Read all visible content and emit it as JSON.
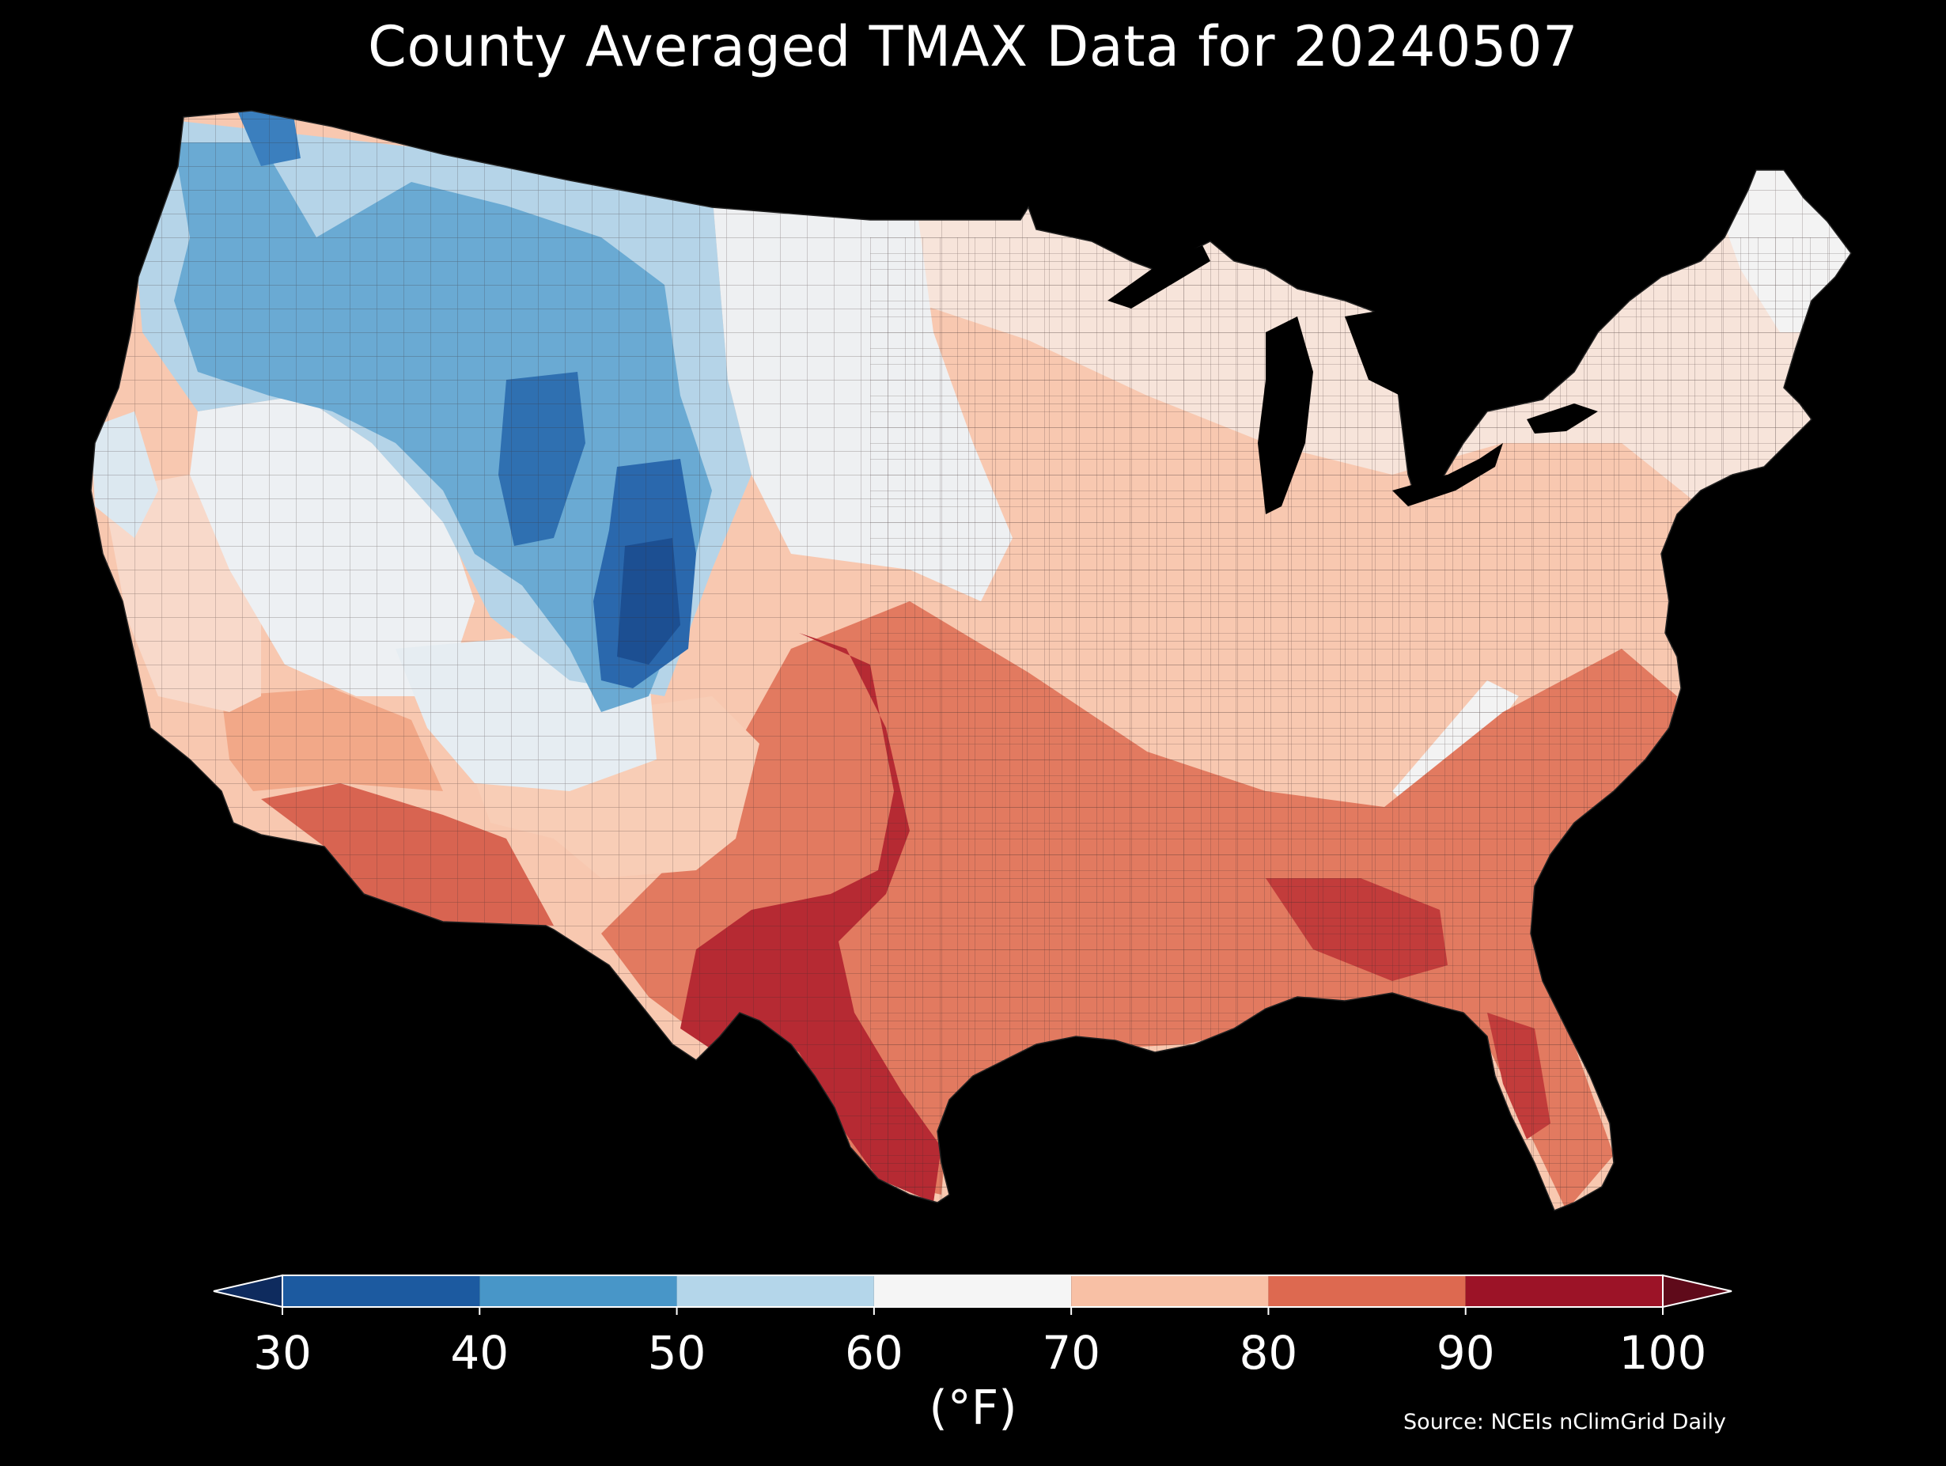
{
  "title": "County Averaged TMAX Data for 20240507",
  "colorbar": {
    "units_label": "(°F)",
    "ticks": [
      "30",
      "40",
      "50",
      "60",
      "70",
      "80",
      "90",
      "100"
    ],
    "bins": [
      {
        "from": 30,
        "to": 40,
        "color": "#1c5aa0"
      },
      {
        "from": 40,
        "to": 50,
        "color": "#4896c8"
      },
      {
        "from": 50,
        "to": 60,
        "color": "#b4d6ea"
      },
      {
        "from": 60,
        "to": 70,
        "color": "#f5f5f5"
      },
      {
        "from": 70,
        "to": 80,
        "color": "#f8c0a5"
      },
      {
        "from": 80,
        "to": 90,
        "color": "#dd6950"
      },
      {
        "from": 90,
        "to": 100,
        "color": "#9c1327"
      }
    ],
    "under_color": "#0e2b5e",
    "over_color": "#5f0a1a"
  },
  "source": "Source: NCEIs nClimGrid Daily"
}
